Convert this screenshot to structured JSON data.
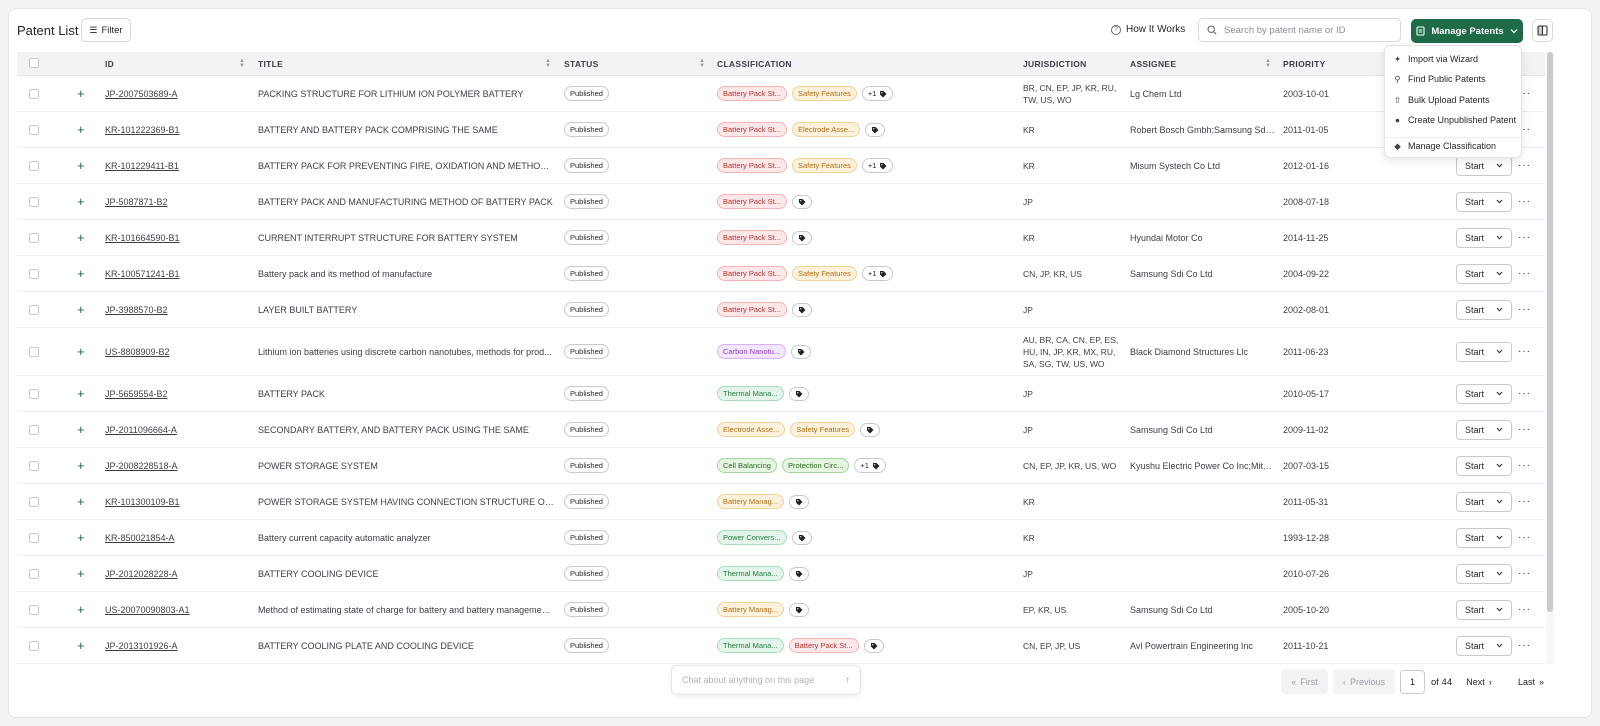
{
  "header": {
    "title": "Patent List",
    "filter_label": "Filter",
    "how_label": "How It Works",
    "search_placeholder": "Search by patent name or ID",
    "manage_label": "Manage Patents"
  },
  "columns": {
    "id": "ID",
    "title": "TITLE",
    "status": "STATUS",
    "classification": "CLASSIFICATION",
    "jurisdiction": "JURISDICTION",
    "assignee": "ASSIGNEE",
    "priority": "PRIORITY"
  },
  "menu": {
    "items": [
      "Import via Wizard",
      "Find Public Patents",
      "Bulk Upload Patents",
      "Create Unpublished Patent"
    ],
    "manage_classification": "Manage Classification"
  },
  "start_label": "Start",
  "rows": [
    {
      "id": "JP-2007503689-A",
      "title": "PACKING STRUCTURE FOR LITHIUM ION POLYMER BATTERY",
      "status": "Published",
      "tags": [
        {
          "label": "Battery Pack St...",
          "color": "red"
        },
        {
          "label": "Safety Features",
          "color": "orange"
        }
      ],
      "more": "+1",
      "jurisdiction": "BR, CN, EP, JP, KR, RU, TW, US, WO",
      "assignee": "Lg Chem Ltd",
      "priority": "2003-10-01"
    },
    {
      "id": "KR-101222369-B1",
      "title": "BATTERY AND BATTERY PACK COMPRISING THE SAME",
      "status": "Published",
      "tags": [
        {
          "label": "Battery Pack St...",
          "color": "red"
        },
        {
          "label": "Electrode Asse...",
          "color": "orange"
        }
      ],
      "more": "",
      "jurisdiction": "KR",
      "assignee": "Robert Bosch Gmbh;Samsung Sdi ...",
      "priority": "2011-01-05"
    },
    {
      "id": "KR-101229411-B1",
      "title": "BATTERY PACK FOR PREVENTING FIRE, OXIDATION AND METHOD FOR ...",
      "status": "Published",
      "tags": [
        {
          "label": "Battery Pack St...",
          "color": "red"
        },
        {
          "label": "Safety Features",
          "color": "orange"
        }
      ],
      "more": "+1",
      "jurisdiction": "KR",
      "assignee": "Misum Systech Co Ltd",
      "priority": "2012-01-16"
    },
    {
      "id": "JP-5087871-B2",
      "title": "BATTERY PACK AND MANUFACTURING METHOD OF BATTERY PACK",
      "status": "Published",
      "tags": [
        {
          "label": "Battery Pack St...",
          "color": "red"
        }
      ],
      "more": "",
      "jurisdiction": "JP",
      "assignee": "",
      "priority": "2008-07-18"
    },
    {
      "id": "KR-101664590-B1",
      "title": "CURRENT INTERRUPT STRUCTURE FOR BATTERY SYSTEM",
      "status": "Published",
      "tags": [
        {
          "label": "Battery Pack St...",
          "color": "red"
        }
      ],
      "more": "",
      "jurisdiction": "KR",
      "assignee": "Hyundai Motor Co",
      "priority": "2014-11-25"
    },
    {
      "id": "KR-100571241-B1",
      "title": "Battery pack and its method of manufacture",
      "status": "Published",
      "tags": [
        {
          "label": "Battery Pack St...",
          "color": "red"
        },
        {
          "label": "Safety Features",
          "color": "orange"
        }
      ],
      "more": "+1",
      "jurisdiction": "CN, JP, KR, US",
      "assignee": "Samsung Sdi Co Ltd",
      "priority": "2004-09-22"
    },
    {
      "id": "JP-3988570-B2",
      "title": "LAYER BUILT BATTERY",
      "status": "Published",
      "tags": [
        {
          "label": "Battery Pack St...",
          "color": "red"
        }
      ],
      "more": "",
      "jurisdiction": "JP",
      "assignee": "",
      "priority": "2002-08-01"
    },
    {
      "id": "US-8808909-B2",
      "title": "Lithium ion batteries using discrete carbon nanotubes, methods for prod...",
      "status": "Published",
      "tags": [
        {
          "label": "Carbon Nanotu...",
          "color": "purple"
        }
      ],
      "more": "",
      "jurisdiction": "AU, BR, CA, CN, EP, ES, HU, IN, JP, KR, MX, RU, SA, SG, TW, US, WO",
      "assignee": "Black Diamond Structures Llc",
      "priority": "2011-06-23"
    },
    {
      "id": "JP-5659554-B2",
      "title": "BATTERY PACK",
      "status": "Published",
      "tags": [
        {
          "label": "Thermal Mana...",
          "color": "green"
        }
      ],
      "more": "",
      "jurisdiction": "JP",
      "assignee": "",
      "priority": "2010-05-17"
    },
    {
      "id": "JP-2011096664-A",
      "title": "SECONDARY BATTERY, AND BATTERY PACK USING THE SAME",
      "status": "Published",
      "tags": [
        {
          "label": "Electrode Asse...",
          "color": "orange"
        },
        {
          "label": "Safety Features",
          "color": "orange"
        }
      ],
      "more": "",
      "jurisdiction": "JP",
      "assignee": "Samsung Sdi Co Ltd",
      "priority": "2009-11-02"
    },
    {
      "id": "JP-2008228518-A",
      "title": "POWER STORAGE SYSTEM",
      "status": "Published",
      "tags": [
        {
          "label": "Cell Balancing",
          "color": "lgreen"
        },
        {
          "label": "Protection Circ...",
          "color": "lgreen"
        }
      ],
      "more": "+1",
      "jurisdiction": "CN, EP, JP, KR, US, WO",
      "assignee": "Kyushu Electric Power Co Inc;Mits...",
      "priority": "2007-03-15"
    },
    {
      "id": "KR-101300109-B1",
      "title": "POWER STORAGE SYSTEM HAVING CONNECTION STRUCTURE OF MOD...",
      "status": "Published",
      "tags": [
        {
          "label": "Battery Manag...",
          "color": "orange"
        }
      ],
      "more": "",
      "jurisdiction": "KR",
      "assignee": "",
      "priority": "2011-05-31"
    },
    {
      "id": "KR-850021854-A",
      "title": "Battery current capacity automatic analyzer",
      "status": "Published",
      "tags": [
        {
          "label": "Power Convers...",
          "color": "green"
        }
      ],
      "more": "",
      "jurisdiction": "KR",
      "assignee": "",
      "priority": "1993-12-28"
    },
    {
      "id": "JP-2012028228-A",
      "title": "BATTERY COOLING DEVICE",
      "status": "Published",
      "tags": [
        {
          "label": "Thermal Mana...",
          "color": "green"
        }
      ],
      "more": "",
      "jurisdiction": "JP",
      "assignee": "",
      "priority": "2010-07-26"
    },
    {
      "id": "US-20070090803-A1",
      "title": "Method of estimating state of charge for battery and battery managemen...",
      "status": "Published",
      "tags": [
        {
          "label": "Battery Manag...",
          "color": "orange"
        }
      ],
      "more": "",
      "jurisdiction": "EP, KR, US",
      "assignee": "Samsung Sdi Co Ltd",
      "priority": "2005-10-20"
    },
    {
      "id": "JP-2013101926-A",
      "title": "BATTERY COOLING PLATE AND COOLING DEVICE",
      "status": "Published",
      "tags": [
        {
          "label": "Thermal Mana...",
          "color": "green"
        },
        {
          "label": "Battery Pack St...",
          "color": "red"
        }
      ],
      "more": "",
      "jurisdiction": "CN, EP, JP, US",
      "assignee": "Avl Powertrain Engineering Inc",
      "priority": "2011-10-21"
    }
  ],
  "chat_placeholder": "Chat about anything on this page",
  "pagination": {
    "first": "First",
    "previous": "Previous",
    "page": "1",
    "of": "of 44",
    "next": "Next",
    "last": "Last"
  },
  "colors": {
    "accent": "#1d6b47"
  }
}
